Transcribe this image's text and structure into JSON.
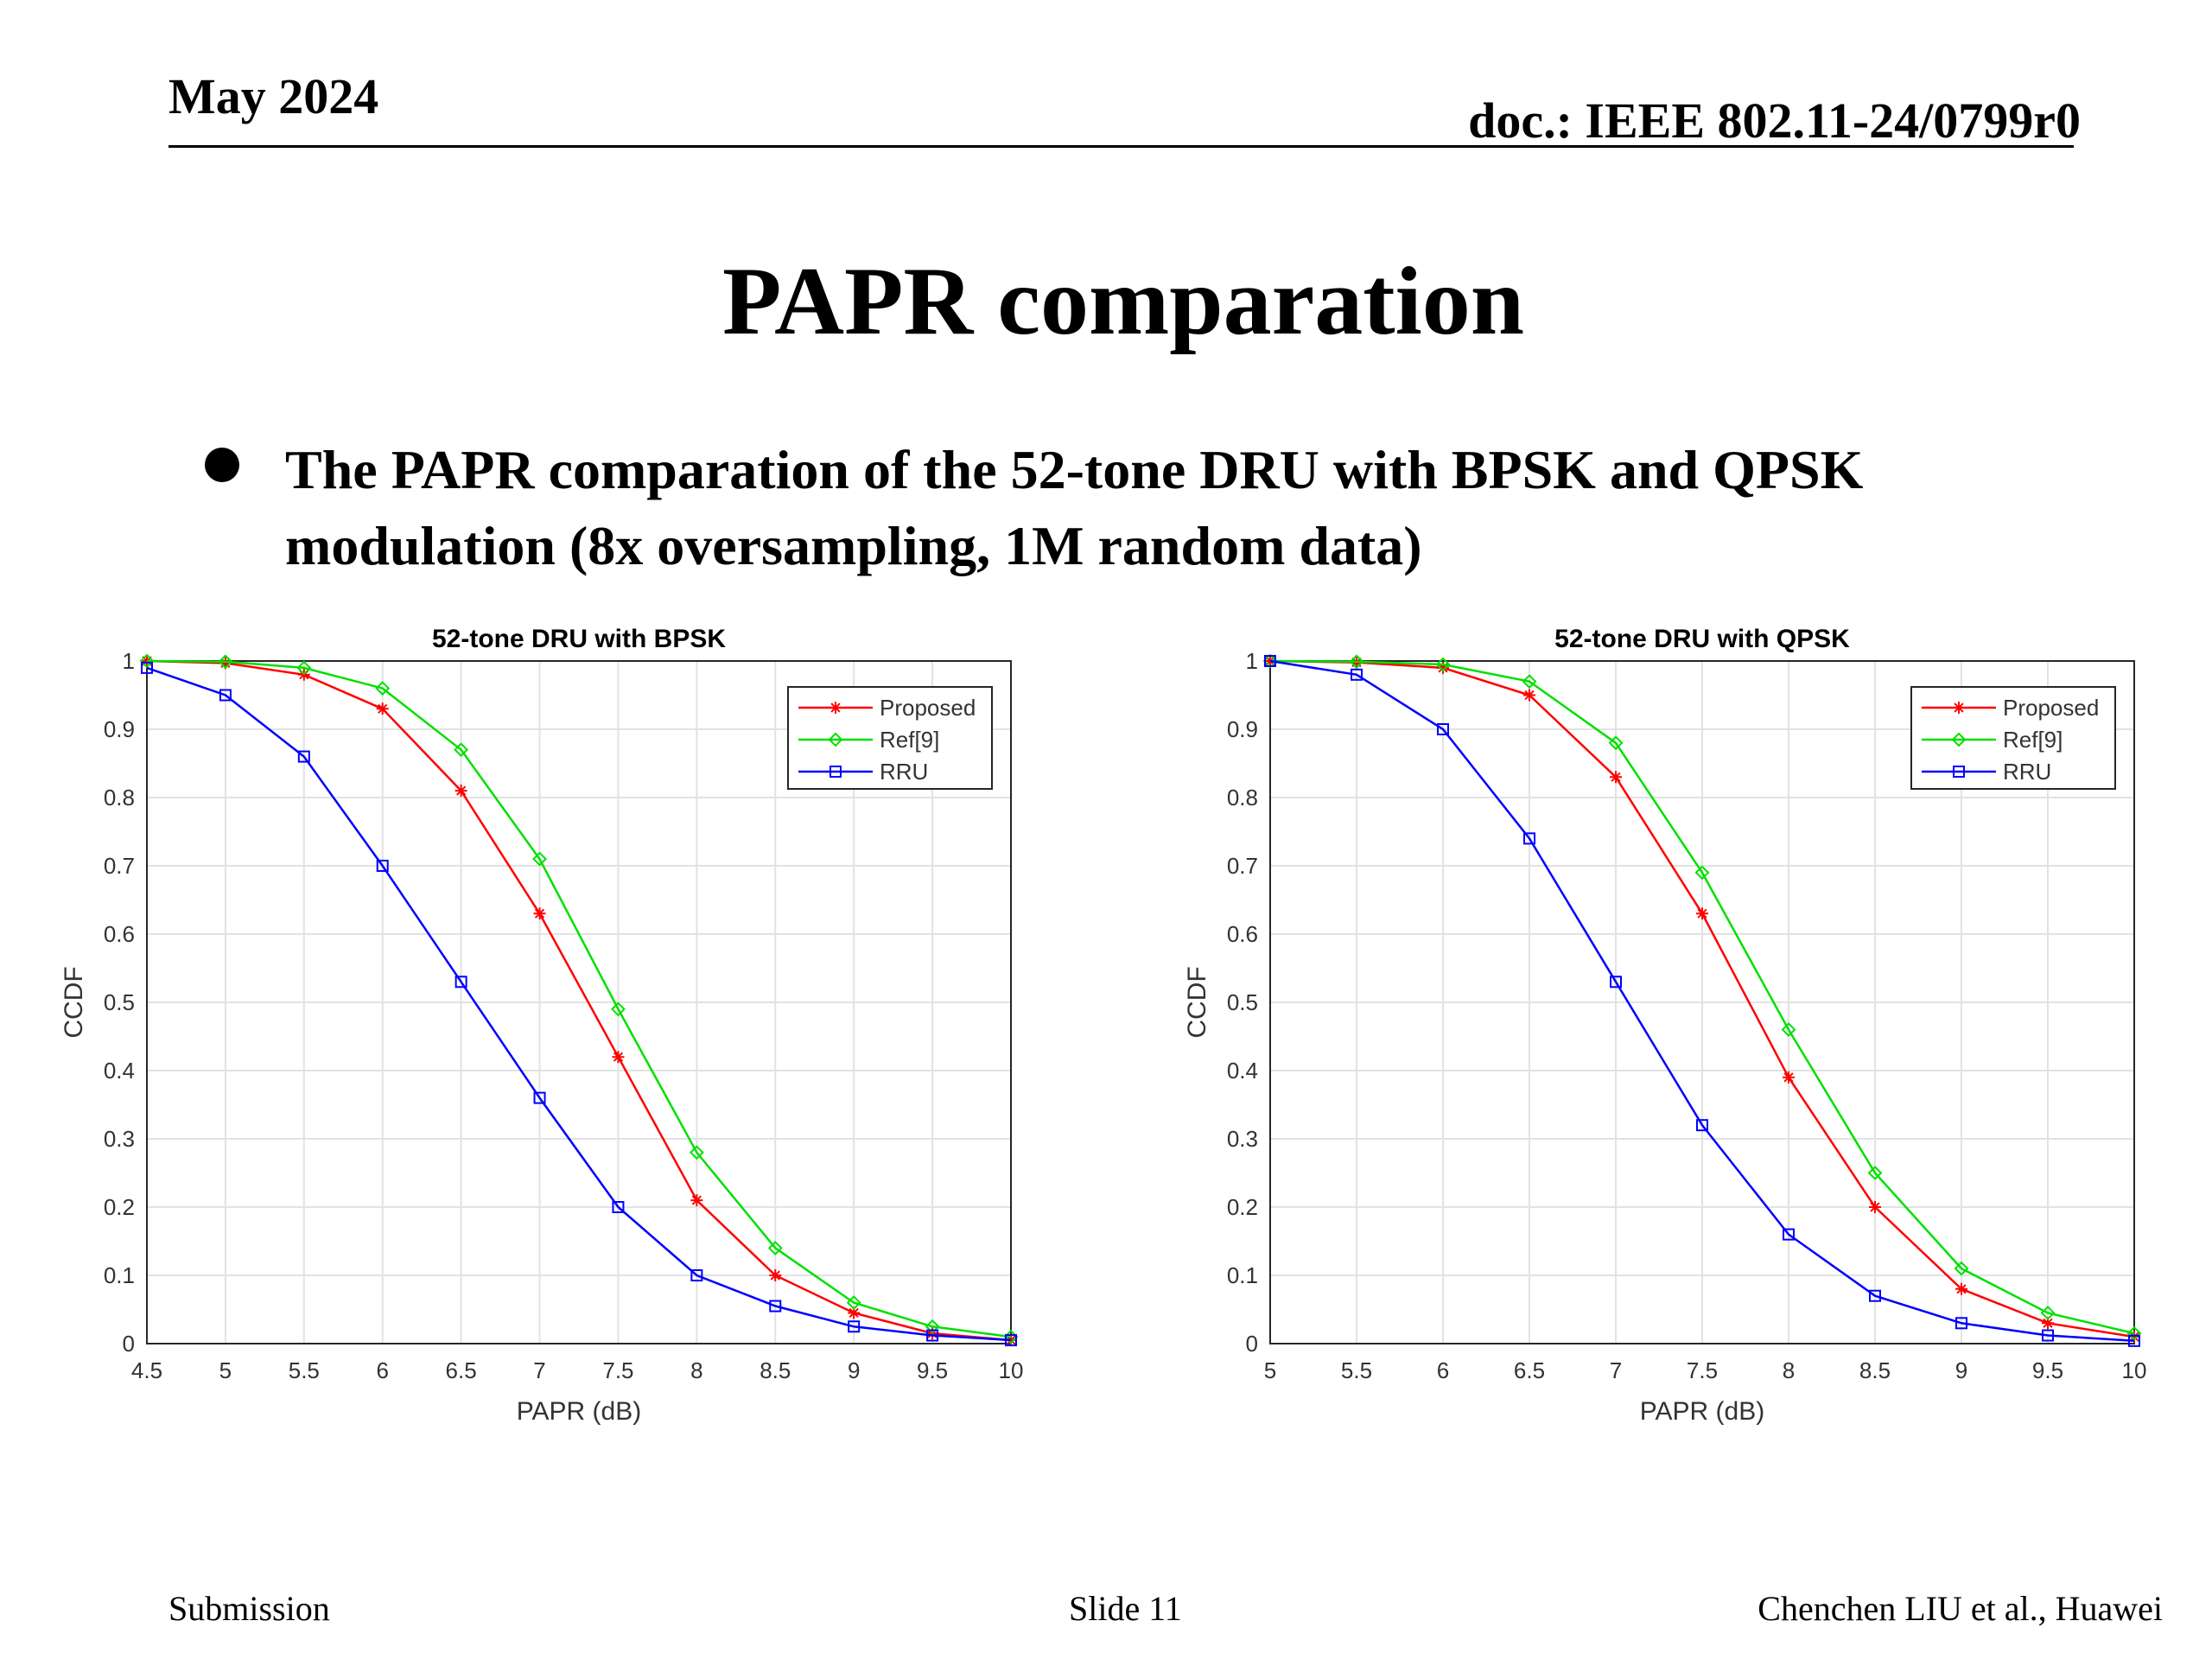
{
  "header": {
    "date": "May 2024",
    "doc": "doc.: IEEE 802.11-24/0799r0"
  },
  "title": "PAPR comparation",
  "bullet": "The PAPR comparation of the 52-tone DRU with BPSK and QPSK modulation (8x oversampling, 1M random data)",
  "footer": {
    "left": "Submission",
    "center": "Slide 11",
    "right": "Chenchen LIU et al., Huawei"
  },
  "colors": {
    "proposed": "#ff0000",
    "ref9": "#00e000",
    "rru": "#0000ff"
  },
  "chart_data": [
    {
      "type": "line",
      "title": "52-tone DRU with BPSK",
      "xlabel": "PAPR (dB)",
      "ylabel": "CCDF",
      "xlim": [
        4.5,
        10
      ],
      "ylim": [
        0,
        1
      ],
      "xticks": [
        "4.5",
        "5",
        "5.5",
        "6",
        "6.5",
        "7",
        "7.5",
        "8",
        "8.5",
        "9",
        "9.5",
        "10"
      ],
      "yticks": [
        "0",
        "0.1",
        "0.2",
        "0.3",
        "0.4",
        "0.5",
        "0.6",
        "0.7",
        "0.8",
        "0.9",
        "1"
      ],
      "grid": true,
      "legend_position": "top-right",
      "series": [
        {
          "name": "Proposed",
          "marker": "star",
          "x": [
            4.5,
            5,
            5.5,
            6,
            6.5,
            7,
            7.5,
            8,
            8.5,
            9,
            9.5,
            10
          ],
          "values": [
            1.0,
            0.997,
            0.98,
            0.93,
            0.81,
            0.63,
            0.42,
            0.21,
            0.1,
            0.045,
            0.015,
            0.005
          ]
        },
        {
          "name": "Ref[9]",
          "marker": "diamond",
          "x": [
            4.5,
            5,
            5.5,
            6,
            6.5,
            7,
            7.5,
            8,
            8.5,
            9,
            9.5,
            10
          ],
          "values": [
            1.0,
            0.999,
            0.99,
            0.96,
            0.87,
            0.71,
            0.49,
            0.28,
            0.14,
            0.06,
            0.025,
            0.01
          ]
        },
        {
          "name": "RRU",
          "marker": "square",
          "x": [
            4.5,
            5,
            5.5,
            6,
            6.5,
            7,
            7.5,
            8,
            8.5,
            9,
            9.5,
            10
          ],
          "values": [
            0.99,
            0.95,
            0.86,
            0.7,
            0.53,
            0.36,
            0.2,
            0.1,
            0.055,
            0.025,
            0.012,
            0.005
          ]
        }
      ]
    },
    {
      "type": "line",
      "title": "52-tone DRU with QPSK",
      "xlabel": "PAPR (dB)",
      "ylabel": "CCDF",
      "xlim": [
        5,
        10
      ],
      "ylim": [
        0,
        1
      ],
      "xticks": [
        "5",
        "5.5",
        "6",
        "6.5",
        "7",
        "7.5",
        "8",
        "8.5",
        "9",
        "9.5",
        "10"
      ],
      "yticks": [
        "0",
        "0.1",
        "0.2",
        "0.3",
        "0.4",
        "0.5",
        "0.6",
        "0.7",
        "0.8",
        "0.9",
        "1"
      ],
      "grid": true,
      "legend_position": "top-right",
      "series": [
        {
          "name": "Proposed",
          "marker": "star",
          "x": [
            5,
            5.5,
            6,
            6.5,
            7,
            7.5,
            8,
            8.5,
            9,
            9.5,
            10
          ],
          "values": [
            1.0,
            0.998,
            0.99,
            0.95,
            0.83,
            0.63,
            0.39,
            0.2,
            0.08,
            0.03,
            0.01
          ]
        },
        {
          "name": "Ref[9]",
          "marker": "diamond",
          "x": [
            5,
            5.5,
            6,
            6.5,
            7,
            7.5,
            8,
            8.5,
            9,
            9.5,
            10
          ],
          "values": [
            1.0,
            0.999,
            0.995,
            0.97,
            0.88,
            0.69,
            0.46,
            0.25,
            0.11,
            0.045,
            0.015
          ]
        },
        {
          "name": "RRU",
          "marker": "square",
          "x": [
            5,
            5.5,
            6,
            6.5,
            7,
            7.5,
            8,
            8.5,
            9,
            9.5,
            10
          ],
          "values": [
            1.0,
            0.98,
            0.9,
            0.74,
            0.53,
            0.32,
            0.16,
            0.07,
            0.03,
            0.012,
            0.004
          ]
        }
      ]
    }
  ]
}
